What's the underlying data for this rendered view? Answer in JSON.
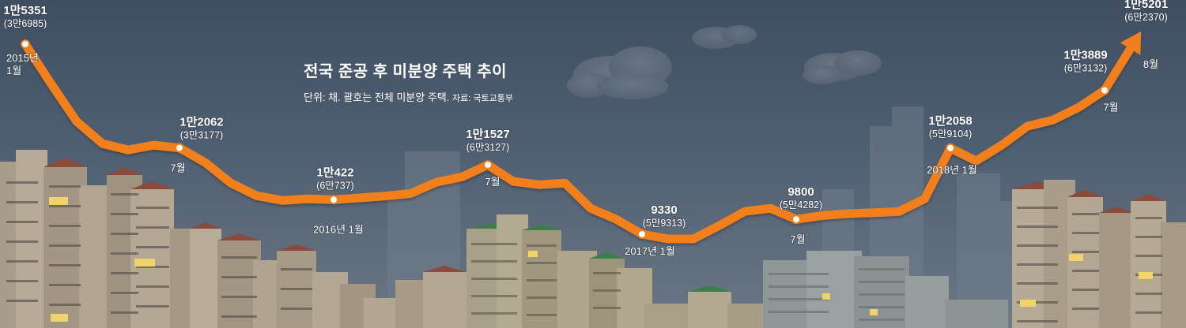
{
  "chart_data": {
    "type": "line",
    "title": "전국 준공 후 미분양 주택 추이",
    "subtitle": "단위: 채. 괄호는 전체 미분양 주택.",
    "source": "자료: 국토교통부",
    "line_color": "#f07f1e",
    "x": [
      "2015-01",
      "2015-02",
      "2015-03",
      "2015-04",
      "2015-05",
      "2015-06",
      "2015-07",
      "2015-08",
      "2015-09",
      "2015-10",
      "2015-11",
      "2015-12",
      "2016-01",
      "2016-02",
      "2016-03",
      "2016-04",
      "2016-05",
      "2016-06",
      "2016-07",
      "2016-08",
      "2016-09",
      "2016-10",
      "2016-11",
      "2016-12",
      "2017-01",
      "2017-02",
      "2017-03",
      "2017-04",
      "2017-05",
      "2017-06",
      "2017-07",
      "2017-08",
      "2017-09",
      "2017-10",
      "2017-11",
      "2017-12",
      "2018-01",
      "2018-02",
      "2018-03",
      "2018-04",
      "2018-05",
      "2018-06",
      "2018-07",
      "2018-08"
    ],
    "values": [
      15351,
      14100,
      12900,
      12200,
      12000,
      12150,
      12062,
      11600,
      10950,
      10550,
      10400,
      10450,
      10422,
      10480,
      10540,
      10620,
      10980,
      11150,
      11527,
      11000,
      10900,
      10950,
      10150,
      9800,
      9330,
      9180,
      9180,
      9600,
      10050,
      10150,
      9800,
      9920,
      9980,
      10010,
      10050,
      10450,
      12058,
      11650,
      12150,
      12750,
      12950,
      13350,
      13889,
      15201
    ],
    "annotations": [
      {
        "index": 0,
        "value": "1만5351",
        "total": "(3만6985)",
        "date": "2015년 1월",
        "date_line1": "2015년",
        "date_line2": "1월"
      },
      {
        "index": 6,
        "value": "1만2062",
        "total": "(3만3177)",
        "date": "7월"
      },
      {
        "index": 12,
        "value": "1만422",
        "total": "(6만737)",
        "date": "2016년 1월"
      },
      {
        "index": 18,
        "value": "1만1527",
        "total": "(6만3127)",
        "date": "7월"
      },
      {
        "index": 24,
        "value": "9330",
        "total": "(5만9313)",
        "date": "2017년 1월"
      },
      {
        "index": 30,
        "value": "9800",
        "total": "(5만4282)",
        "date": "7월"
      },
      {
        "index": 36,
        "value": "1만2058",
        "total": "(5만9104)",
        "date": "2018년 1월"
      },
      {
        "index": 42,
        "value": "1만3889",
        "total": "(6만3132)",
        "date": "7월"
      },
      {
        "index": 43,
        "value": "1만5201",
        "total": "(6만2370)",
        "date": "8월"
      }
    ]
  }
}
